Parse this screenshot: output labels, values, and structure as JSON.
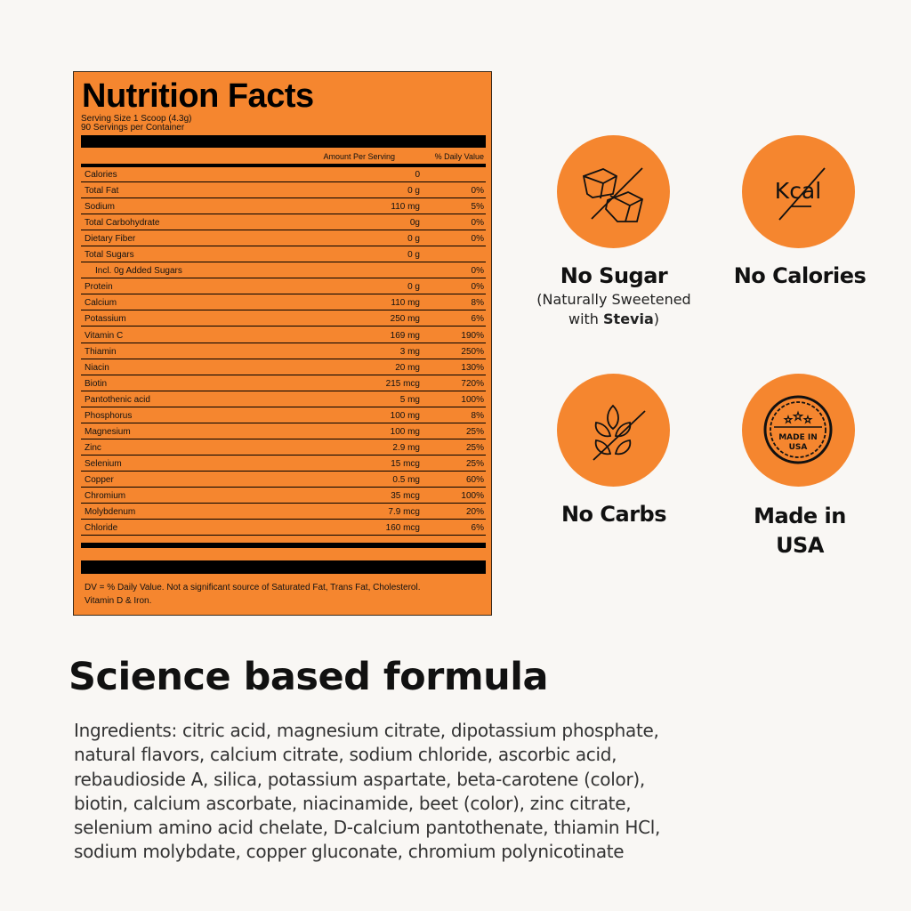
{
  "label": {
    "title": "Nutrition Facts",
    "serving_size": "Serving Size 1 Scoop (4.3g)",
    "servings": "90 Servings per Container",
    "col_amount": "Amount Per Serving",
    "col_dv": "% Daily Value",
    "rows": [
      {
        "name": "Calories",
        "amount": "0",
        "dv": ""
      },
      {
        "name": "Total Fat",
        "amount": "0 g",
        "dv": "0%"
      },
      {
        "name": "Sodium",
        "amount": "110 mg",
        "dv": "5%"
      },
      {
        "name": "Total Carbohydrate",
        "amount": "0g",
        "dv": "0%"
      },
      {
        "name": "Dietary Fiber",
        "amount": "0 g",
        "dv": "0%"
      },
      {
        "name": "Total Sugars",
        "amount": "0 g",
        "dv": ""
      },
      {
        "name": "Incl. 0g Added Sugars",
        "amount": "",
        "dv": "0%",
        "indent": true
      },
      {
        "name": "Protein",
        "amount": "0 g",
        "dv": "0%"
      },
      {
        "name": "Calcium",
        "amount": "110 mg",
        "dv": "8%"
      },
      {
        "name": "Potassium",
        "amount": "250 mg",
        "dv": "6%"
      },
      {
        "name": "Vitamin C",
        "amount": "169 mg",
        "dv": "190%"
      },
      {
        "name": "Thiamin",
        "amount": "3 mg",
        "dv": "250%"
      },
      {
        "name": "Niacin",
        "amount": "20 mg",
        "dv": "130%"
      },
      {
        "name": "Biotin",
        "amount": "215 mcg",
        "dv": "720%"
      },
      {
        "name": "Pantothenic acid",
        "amount": "5 mg",
        "dv": "100%"
      },
      {
        "name": "Phosphorus",
        "amount": "100 mg",
        "dv": "8%"
      },
      {
        "name": "Magnesium",
        "amount": "100 mg",
        "dv": "25%"
      },
      {
        "name": "Zinc",
        "amount": "2.9 mg",
        "dv": "25%"
      },
      {
        "name": "Selenium",
        "amount": "15 mcg",
        "dv": "25%"
      },
      {
        "name": "Copper",
        "amount": "0.5 mg",
        "dv": "60%"
      },
      {
        "name": "Chromium",
        "amount": "35 mcg",
        "dv": "100%"
      },
      {
        "name": "Molybdenum",
        "amount": "7.9 mcg",
        "dv": "20%"
      },
      {
        "name": "Chloride",
        "amount": "160 mcg",
        "dv": "6%"
      }
    ],
    "footnote_1": "DV = % Daily Value. Not a significant source of Saturated Fat, Trans Fat, Cholesterol.",
    "footnote_2": "Vitamin D & Iron."
  },
  "badges": [
    {
      "icon": "no-sugar-cubes-icon",
      "title": "No Sugar",
      "sub_1": "(Naturally Sweetened",
      "sub_2_pre": "with ",
      "sub_2_bold": "Stevia",
      "sub_2_post": ")"
    },
    {
      "icon": "no-kcal-icon",
      "title": "No Calories",
      "icon_text": "Kcal"
    },
    {
      "icon": "no-grain-icon",
      "title": "No Carbs"
    },
    {
      "icon": "made-in-usa-seal-icon",
      "title_1": "Made in",
      "title_2": "USA",
      "seal_text_1": "MADE IN",
      "seal_text_2": "USA"
    }
  ],
  "accent_color": "#f5862f",
  "formula": {
    "heading": "Science based formula",
    "lines": [
      "Ingredients: citric acid, magnesium citrate, dipotassium phosphate,",
      "natural flavors, calcium citrate, sodium chloride, ascorbic acid,",
      "rebaudioside A, silica, potassium aspartate, beta-carotene (color),",
      "biotin, calcium ascorbate, niacinamide, beet (color), zinc citrate,",
      "selenium amino acid chelate, D-calcium pantothenate, thiamin HCl,",
      "sodium molybdate, copper gluconate, chromium polynicotinate"
    ]
  }
}
